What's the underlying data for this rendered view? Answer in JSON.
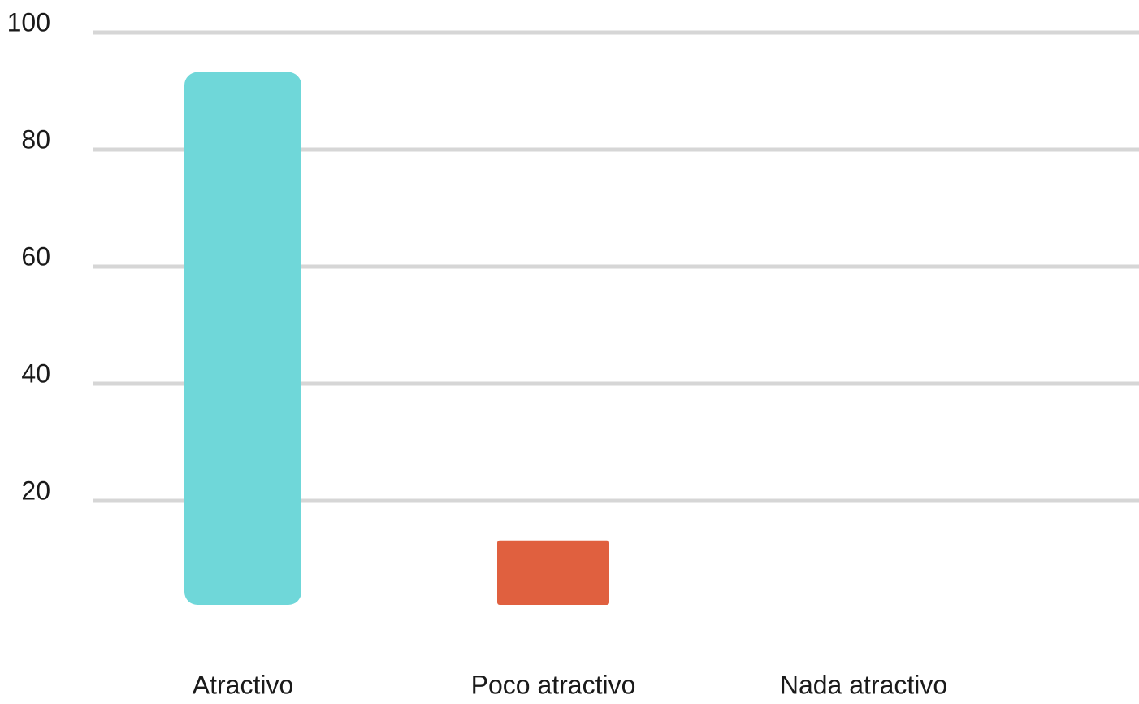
{
  "chart_data": {
    "type": "bar",
    "categories": [
      "Atractivo",
      "Poco atractivo",
      "Nada atractivo"
    ],
    "values": [
      91,
      11,
      0
    ],
    "colors": [
      "#6fd7d9",
      "#e0603f",
      "#9aa0a6"
    ],
    "ylim": [
      0,
      100
    ],
    "yticks": [
      20,
      40,
      60,
      80,
      100
    ],
    "grid": true
  }
}
